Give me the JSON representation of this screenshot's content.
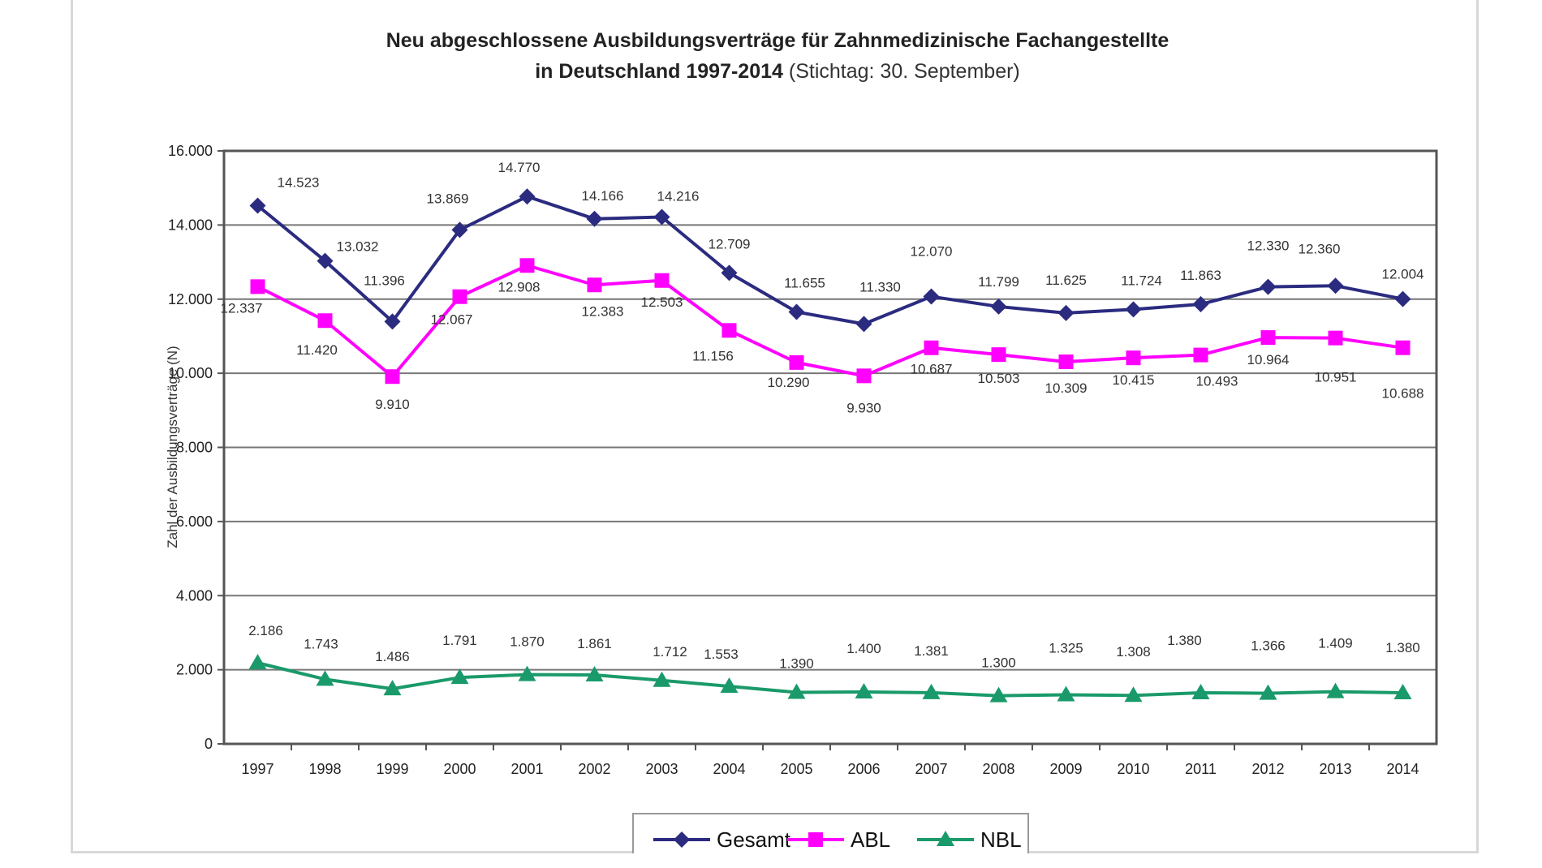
{
  "chart_data": {
    "type": "line",
    "title_line1": "Neu abgeschlossene Ausbildungsverträge für Zahnmedizinische Fachangestellte",
    "title_line2_bold": "in Deutschland 1997-2014",
    "title_line2_normal": " (Stichtag: 30. September)",
    "ylabel": "Zahl der Ausbildungsverträge (N)",
    "xlabel": "",
    "ylim": [
      0,
      16000
    ],
    "yticks": [
      0,
      2000,
      4000,
      6000,
      8000,
      10000,
      12000,
      14000,
      16000
    ],
    "ytick_labels": [
      "0",
      "2.000",
      "4.000",
      "6.000",
      "8.000",
      "10.000",
      "12.000",
      "14.000",
      "16.000"
    ],
    "categories": [
      "1997",
      "1998",
      "1999",
      "2000",
      "2001",
      "2002",
      "2003",
      "2004",
      "2005",
      "2006",
      "2007",
      "2008",
      "2009",
      "2010",
      "2011",
      "2012",
      "2013",
      "2014"
    ],
    "grid": true,
    "legend_position": "bottom",
    "series": [
      {
        "name": "Gesamt",
        "color": "#2b2b80",
        "marker": "diamond",
        "values": [
          14523,
          13032,
          11396,
          13869,
          14770,
          14166,
          14216,
          12709,
          11655,
          11330,
          12070,
          11799,
          11625,
          11724,
          11863,
          12330,
          12360,
          12004
        ],
        "labels": [
          "14.523",
          "13.032",
          "11.396",
          "13.869",
          "14.770",
          "14.166",
          "14.216",
          "12.709",
          "11.655",
          "11.330",
          "12.070",
          "11.799",
          "11.625",
          "11.724",
          "11.863",
          "12.330",
          "12.360",
          "12.004"
        ]
      },
      {
        "name": "ABL",
        "color": "#ff00ff",
        "marker": "square",
        "values": [
          12337,
          11420,
          9910,
          12067,
          12908,
          12383,
          12503,
          11156,
          10290,
          9930,
          10687,
          10503,
          10309,
          10415,
          10493,
          10964,
          10951,
          10688
        ],
        "labels": [
          "12.337",
          "11.420",
          "9.910",
          "12.067",
          "12.908",
          "12.383",
          "12.503",
          "11.156",
          "10.290",
          "9.930",
          "10.687",
          "10.503",
          "10.309",
          "10.415",
          "10.493",
          "10.964",
          "10.951",
          "10.688"
        ]
      },
      {
        "name": "NBL",
        "color": "#1a9a6a",
        "marker": "triangle",
        "values": [
          2186,
          1743,
          1486,
          1791,
          1870,
          1861,
          1712,
          1553,
          1390,
          1400,
          1381,
          1300,
          1325,
          1308,
          1380,
          1366,
          1409,
          1380
        ],
        "labels": [
          "2.186",
          "1.743",
          "1.486",
          "1.791",
          "1.870",
          "1.861",
          "1.712",
          "1.553",
          "1.390",
          "1.400",
          "1.381",
          "1.300",
          "1.325",
          "1.308",
          "1.380",
          "1.366",
          "1.409",
          "1.380"
        ]
      }
    ]
  }
}
